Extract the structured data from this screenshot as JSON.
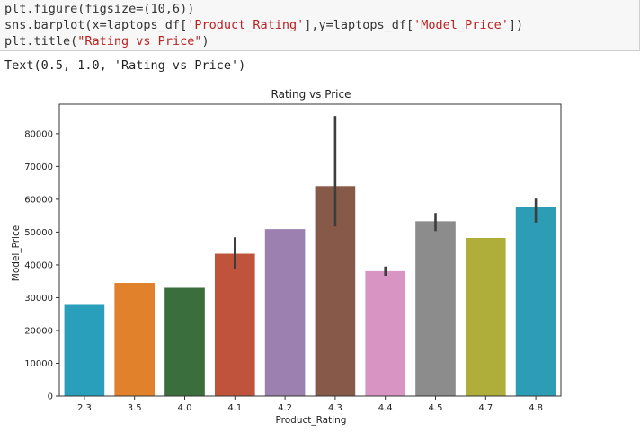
{
  "code": {
    "line1": "plt.figure(figsize=(10,6))",
    "line2_pre": "sns.barplot(x=laptops_df[",
    "line2_str1": "'Product_Rating'",
    "line2_mid": "],y=laptops_df[",
    "line2_str2": "'Model_Price'",
    "line2_post": "])",
    "line3_pre": "plt.title(",
    "line3_str": "\"Rating vs Price\"",
    "line3_post": ")"
  },
  "output": {
    "text": "Text(0.5, 1.0, 'Rating vs Price')"
  },
  "chart_data": {
    "type": "bar",
    "title": "Rating vs Price",
    "xlabel": "Product_Rating",
    "ylabel": "Model_Price",
    "categories": [
      "2.3",
      "3.5",
      "4.0",
      "4.1",
      "4.2",
      "4.3",
      "4.4",
      "4.5",
      "4.7",
      "4.8"
    ],
    "values": [
      27800,
      34500,
      33000,
      43400,
      50900,
      64000,
      38100,
      53300,
      48200,
      57700
    ],
    "error_bars": [
      null,
      null,
      null,
      [
        38800,
        48400
      ],
      null,
      [
        51700,
        85400
      ],
      [
        36700,
        39500
      ],
      [
        50300,
        55800
      ],
      null,
      [
        52900,
        60200
      ]
    ],
    "colors": [
      "#2a9fbc",
      "#e1812c",
      "#3a6e3c",
      "#c0533b",
      "#9b80b0",
      "#875948",
      "#d895c3",
      "#8c8c8c",
      "#b0ae3b",
      "#2d9db6"
    ],
    "ylim": [
      0,
      89000
    ],
    "yticks": [
      0,
      10000,
      20000,
      30000,
      40000,
      50000,
      60000,
      70000,
      80000
    ],
    "grid": false
  }
}
